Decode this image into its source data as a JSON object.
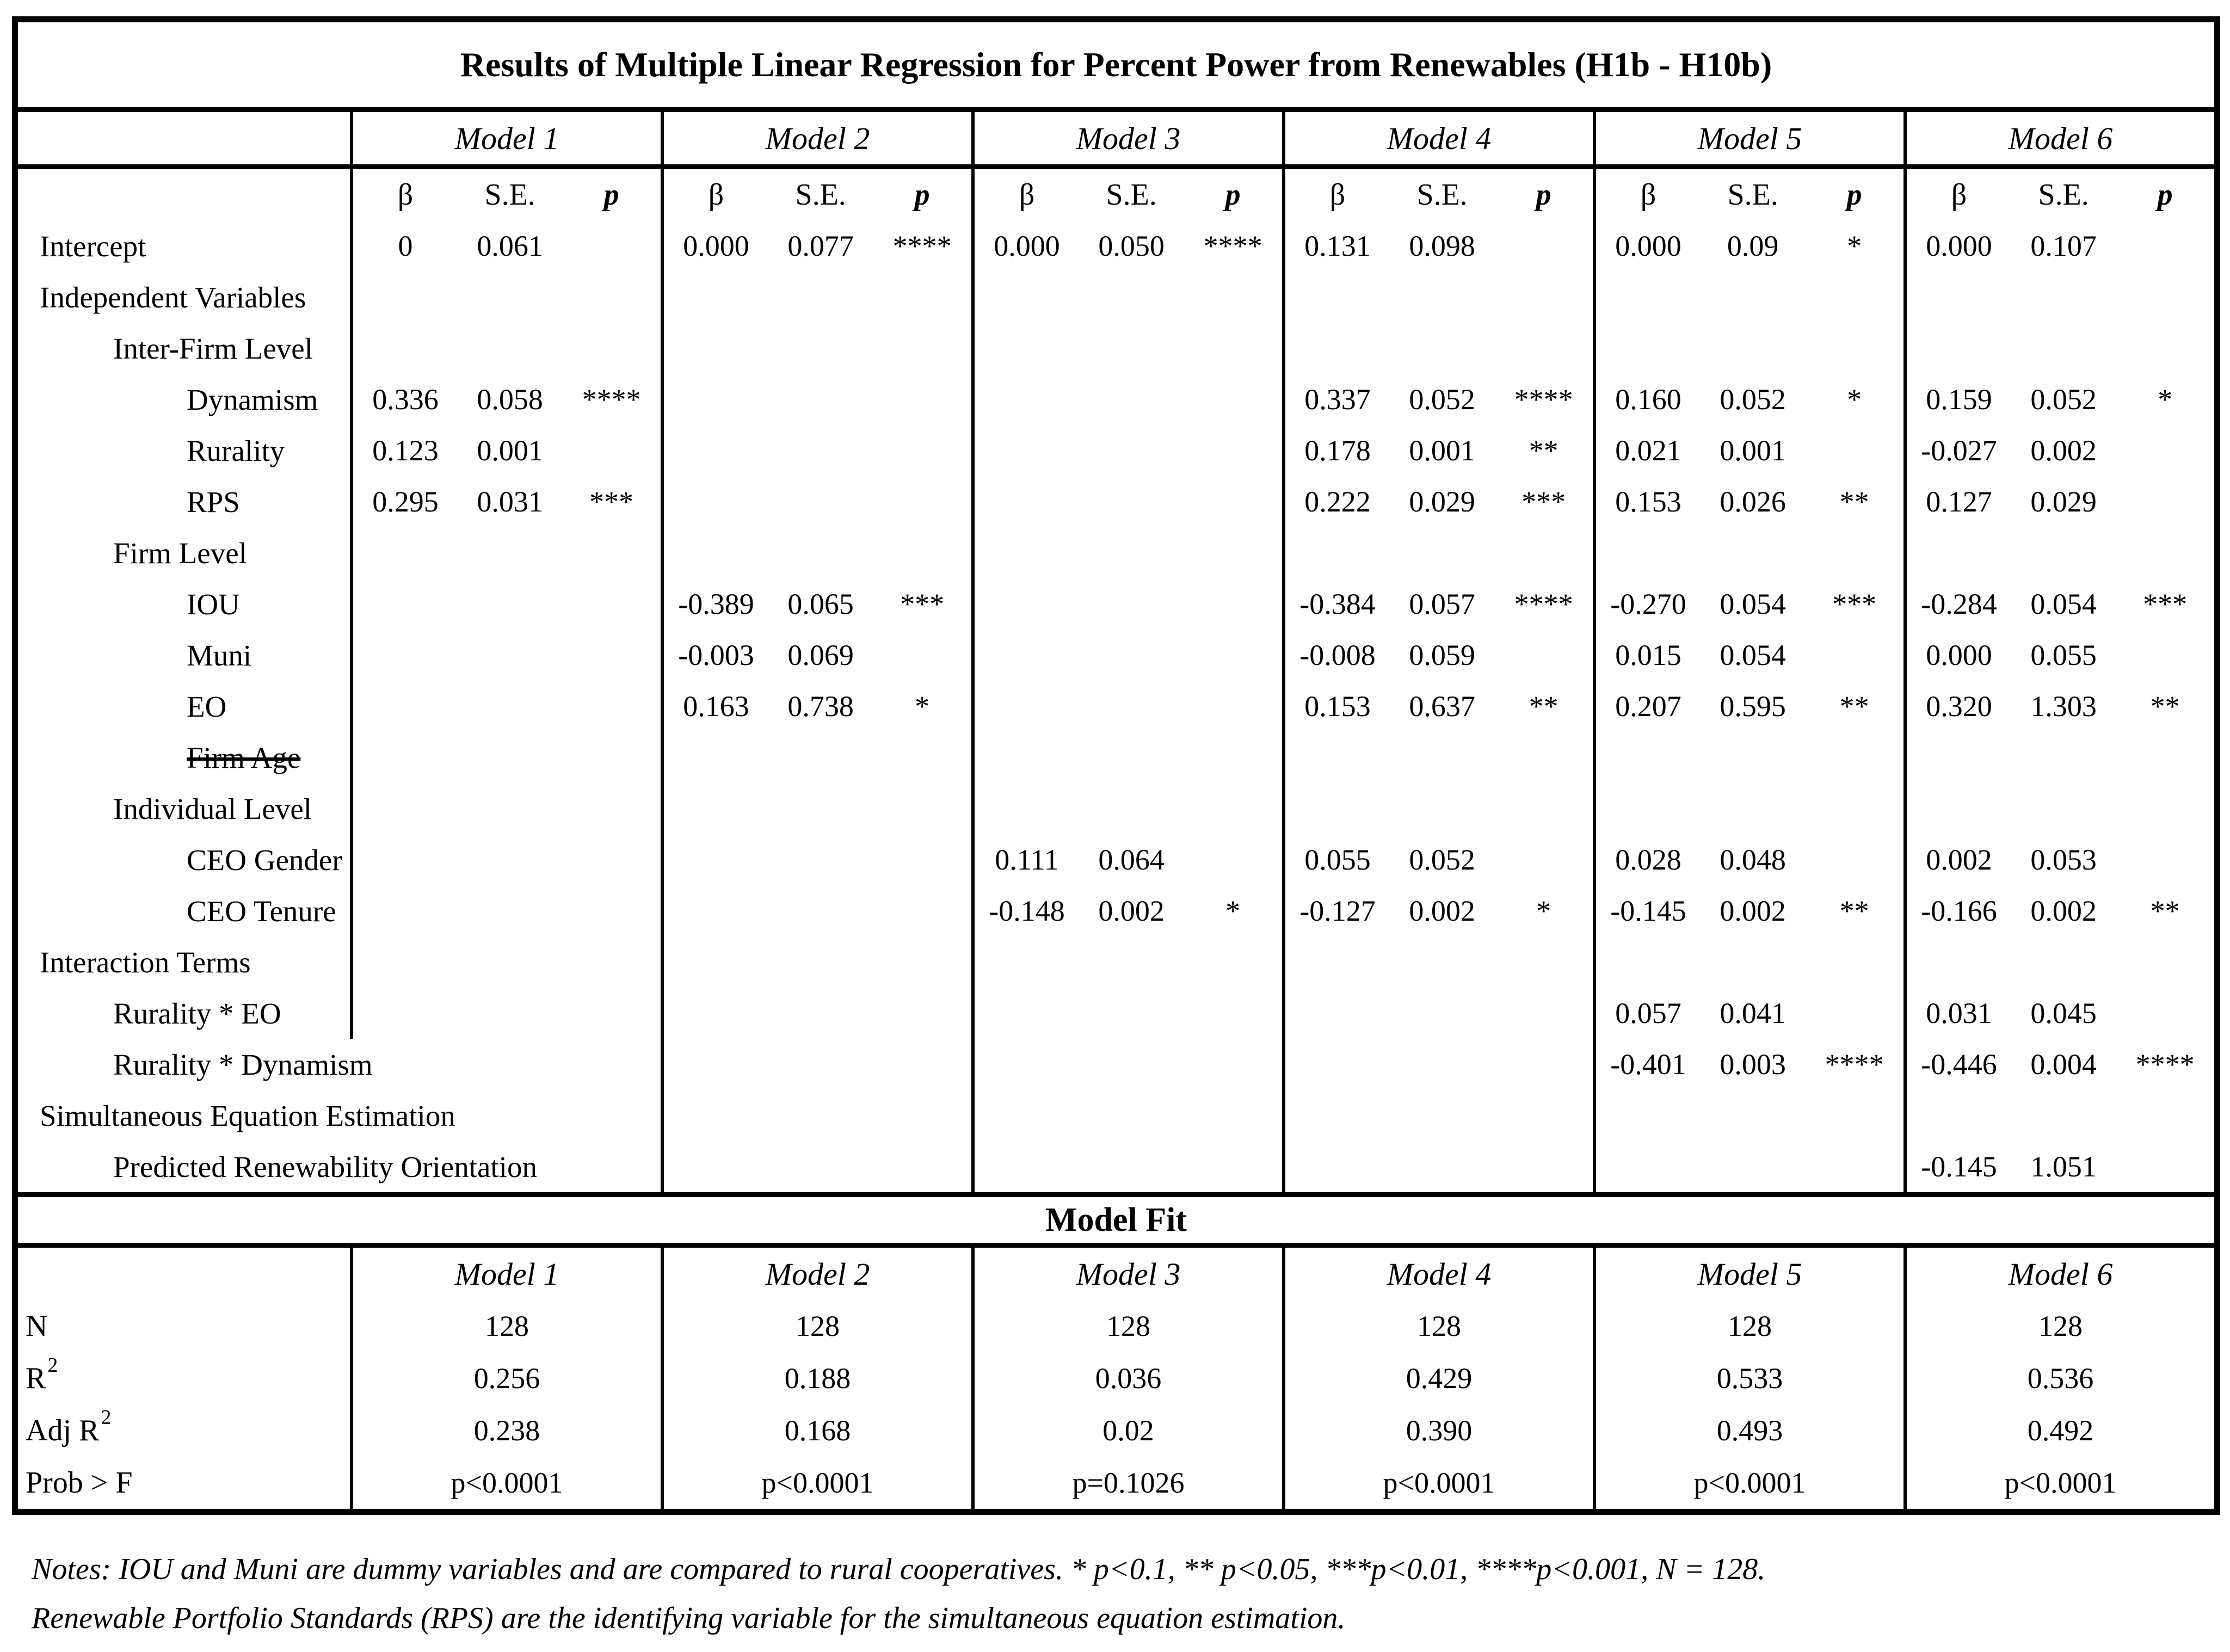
{
  "title": "Results of Multiple Linear Regression for Percent Power from Renewables (H1b - H10b)",
  "models": [
    "Model 1",
    "Model 2",
    "Model 3",
    "Model 4",
    "Model 5",
    "Model 6"
  ],
  "subheaders": {
    "beta": "β",
    "se": "S.E.",
    "p": "p"
  },
  "rows": [
    {
      "label": "Intercept",
      "indent": 0,
      "cells": [
        [
          "0",
          "0.061",
          ""
        ],
        [
          "0.000",
          "0.077",
          "****"
        ],
        [
          "0.000",
          "0.050",
          "****"
        ],
        [
          "0.131",
          "0.098",
          ""
        ],
        [
          "0.000",
          "0.09",
          "*"
        ],
        [
          "0.000",
          "0.107",
          ""
        ]
      ]
    },
    {
      "label": "Independent Variables",
      "indent": 0,
      "cells": null
    },
    {
      "label": "Inter-Firm Level",
      "indent": 1,
      "cells": null
    },
    {
      "label": "Dynamism",
      "indent": 2,
      "cells": [
        [
          "0.336",
          "0.058",
          "****"
        ],
        null,
        null,
        [
          "0.337",
          "0.052",
          "****"
        ],
        [
          "0.160",
          "0.052",
          "*"
        ],
        [
          "0.159",
          "0.052",
          "*"
        ]
      ]
    },
    {
      "label": "Rurality",
      "indent": 2,
      "cells": [
        [
          "0.123",
          "0.001",
          ""
        ],
        null,
        null,
        [
          "0.178",
          "0.001",
          "**"
        ],
        [
          "0.021",
          "0.001",
          ""
        ],
        [
          "-0.027",
          "0.002",
          ""
        ]
      ]
    },
    {
      "label": "RPS",
      "indent": 2,
      "cells": [
        [
          "0.295",
          "0.031",
          "***"
        ],
        null,
        null,
        [
          "0.222",
          "0.029",
          "***"
        ],
        [
          "0.153",
          "0.026",
          "**"
        ],
        [
          "0.127",
          "0.029",
          ""
        ]
      ]
    },
    {
      "label": "Firm Level",
      "indent": 1,
      "cells": null
    },
    {
      "label": "IOU",
      "indent": 2,
      "cells": [
        null,
        [
          "-0.389",
          "0.065",
          "***"
        ],
        null,
        [
          "-0.384",
          "0.057",
          "****"
        ],
        [
          "-0.270",
          "0.054",
          "***"
        ],
        [
          "-0.284",
          "0.054",
          "***"
        ]
      ]
    },
    {
      "label": "Muni",
      "indent": 2,
      "cells": [
        null,
        [
          "-0.003",
          "0.069",
          ""
        ],
        null,
        [
          "-0.008",
          "0.059",
          ""
        ],
        [
          "0.015",
          "0.054",
          ""
        ],
        [
          "0.000",
          "0.055",
          ""
        ]
      ]
    },
    {
      "label": "EO",
      "indent": 2,
      "cells": [
        null,
        [
          "0.163",
          "0.738",
          "*"
        ],
        null,
        [
          "0.153",
          "0.637",
          "**"
        ],
        [
          "0.207",
          "0.595",
          "**"
        ],
        [
          "0.320",
          "1.303",
          "**"
        ]
      ]
    },
    {
      "label": "Firm Age",
      "indent": 2,
      "strike": true,
      "cells": null
    },
    {
      "label": "Individual Level",
      "indent": 1,
      "cells": null
    },
    {
      "label": "CEO Gender",
      "indent": 2,
      "cells": [
        null,
        null,
        [
          "0.111",
          "0.064",
          ""
        ],
        [
          "0.055",
          "0.052",
          ""
        ],
        [
          "0.028",
          "0.048",
          ""
        ],
        [
          "0.002",
          "0.053",
          ""
        ]
      ]
    },
    {
      "label": "CEO Tenure",
      "indent": 2,
      "cells": [
        null,
        null,
        [
          "-0.148",
          "0.002",
          "*"
        ],
        [
          "-0.127",
          "0.002",
          "*"
        ],
        [
          "-0.145",
          "0.002",
          "**"
        ],
        [
          "-0.166",
          "0.002",
          "**"
        ]
      ]
    },
    {
      "label": "Interaction Terms",
      "indent": 0,
      "cells": null
    },
    {
      "label": "Rurality * EO",
      "indent": 1,
      "cells": [
        null,
        null,
        null,
        null,
        [
          "0.057",
          "0.041",
          ""
        ],
        [
          "0.031",
          "0.045",
          ""
        ]
      ]
    },
    {
      "label": "Rurality * Dynamism",
      "indent": 1,
      "no_first_border": true,
      "cells": [
        null,
        null,
        null,
        null,
        [
          "-0.401",
          "0.003",
          "****"
        ],
        [
          "-0.446",
          "0.004",
          "****"
        ]
      ]
    },
    {
      "label": "Simultaneous Equation Estimation",
      "indent": 0,
      "no_first_border": true,
      "cells": null
    },
    {
      "label": "Predicted Renewability Orientation",
      "indent": 1,
      "no_first_border": true,
      "cells": [
        null,
        null,
        null,
        null,
        null,
        [
          "-0.145",
          "1.051",
          ""
        ]
      ]
    }
  ],
  "model_fit": {
    "band_label": "Model Fit",
    "models": [
      "Model 1",
      "Model 2",
      "Model 3",
      "Model 4",
      "Model 5",
      "Model 6"
    ],
    "rows": [
      {
        "label": "N",
        "sup": "",
        "values": [
          "128",
          "128",
          "128",
          "128",
          "128",
          "128"
        ]
      },
      {
        "label": "R",
        "sup": "2",
        "values": [
          "0.256",
          "0.188",
          "0.036",
          "0.429",
          "0.533",
          "0.536"
        ]
      },
      {
        "label": "Adj R",
        "sup": "2",
        "values": [
          "0.238",
          "0.168",
          "0.02",
          "0.390",
          "0.493",
          "0.492"
        ]
      },
      {
        "label": "Prob > F",
        "sup": "",
        "values": [
          "p<0.0001",
          "p<0.0001",
          "p=0.1026",
          "p<0.0001",
          "p<0.0001",
          "p<0.0001"
        ]
      }
    ]
  },
  "notes": [
    "Notes: IOU and Muni are dummy variables and are compared to rural cooperatives.  * p<0.1,  ** p<0.05,  ***p<0.01,  ****p<0.001,  N = 128.",
    "Renewable Portfolio Standards (RPS) are the identifying variable for the simultaneous equation estimation."
  ]
}
